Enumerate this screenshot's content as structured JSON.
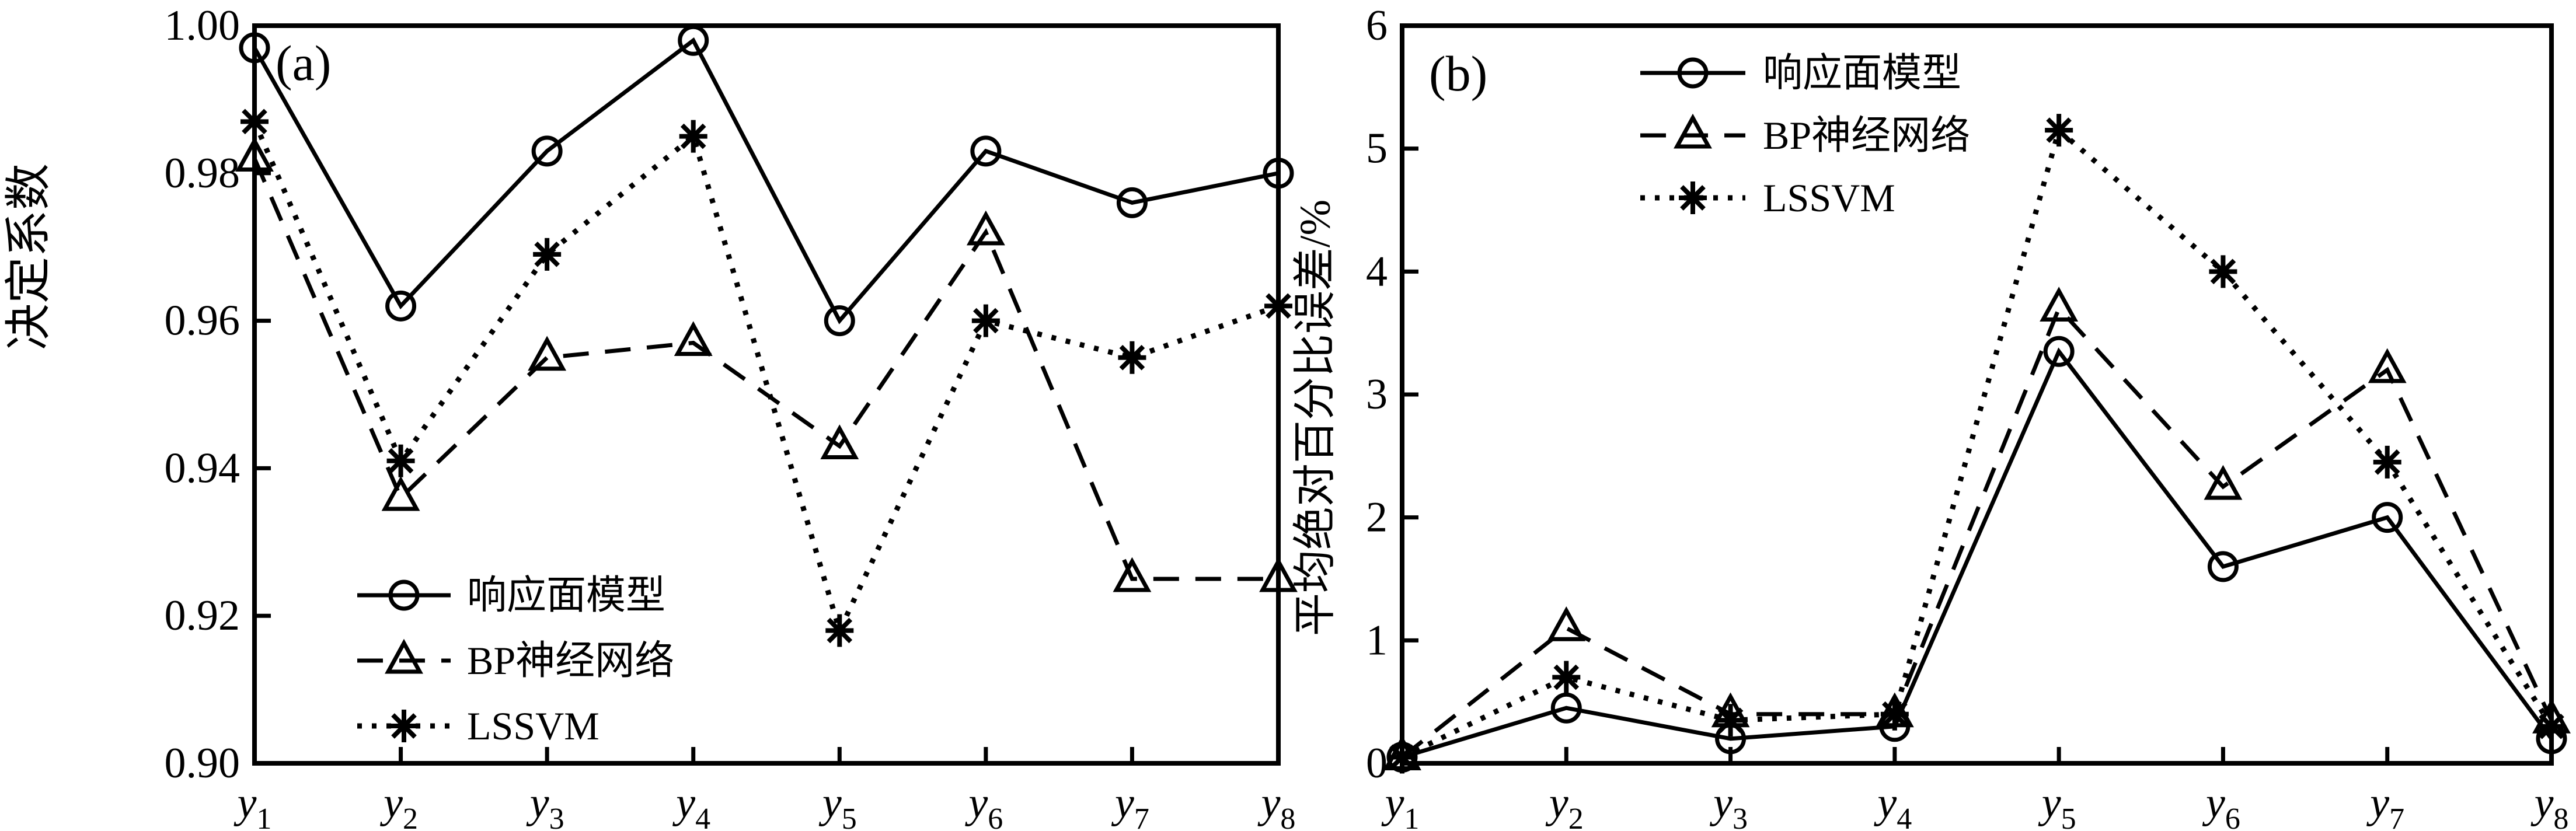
{
  "figure": {
    "background": "#ffffff",
    "ink_color": "#000000"
  },
  "chart_data": [
    {
      "type": "line",
      "panel_label": "(a)",
      "ylabel": "决定系数",
      "xlabel": "",
      "categories": [
        {
          "base": "y",
          "sub": "1"
        },
        {
          "base": "y",
          "sub": "2"
        },
        {
          "base": "y",
          "sub": "3"
        },
        {
          "base": "y",
          "sub": "4"
        },
        {
          "base": "y",
          "sub": "5"
        },
        {
          "base": "y",
          "sub": "6"
        },
        {
          "base": "y",
          "sub": "7"
        },
        {
          "base": "y",
          "sub": "8"
        }
      ],
      "y_ticks": [
        "1.00",
        "0.98",
        "0.96",
        "0.94",
        "0.92",
        "0.90"
      ],
      "ylim": [
        0.9,
        1.0
      ],
      "grid": "off",
      "legend_position": "lower-left",
      "series": [
        {
          "name": "响应面模型",
          "marker": "circle",
          "line": "solid",
          "values": [
            0.997,
            0.962,
            0.983,
            0.998,
            0.96,
            0.983,
            0.976,
            0.98
          ]
        },
        {
          "name": "BP神经网络",
          "marker": "triangle",
          "line": "dashed",
          "values": [
            0.982,
            0.936,
            0.955,
            0.957,
            0.943,
            0.972,
            0.925,
            0.925
          ]
        },
        {
          "name": "LSSVM",
          "marker": "asterisk",
          "line": "dotted",
          "values": [
            0.987,
            0.941,
            0.969,
            0.985,
            0.918,
            0.96,
            0.955,
            0.962
          ]
        }
      ]
    },
    {
      "type": "line",
      "panel_label": "(b)",
      "ylabel": "平均绝对百分比误差/%",
      "xlabel": "",
      "categories": [
        {
          "base": "y",
          "sub": "1"
        },
        {
          "base": "y",
          "sub": "2"
        },
        {
          "base": "y",
          "sub": "3"
        },
        {
          "base": "y",
          "sub": "4"
        },
        {
          "base": "y",
          "sub": "5"
        },
        {
          "base": "y",
          "sub": "6"
        },
        {
          "base": "y",
          "sub": "7"
        },
        {
          "base": "y",
          "sub": "8"
        }
      ],
      "y_ticks": [
        "6",
        "5",
        "4",
        "3",
        "2",
        "1",
        "0"
      ],
      "ylim": [
        0,
        6
      ],
      "grid": "off",
      "legend_position": "upper-center",
      "series": [
        {
          "name": "响应面模型",
          "marker": "circle",
          "line": "solid",
          "values": [
            0.05,
            0.45,
            0.2,
            0.3,
            3.35,
            1.6,
            2.0,
            0.2
          ]
        },
        {
          "name": "BP神经网络",
          "marker": "triangle",
          "line": "dashed",
          "values": [
            0.05,
            1.1,
            0.4,
            0.4,
            3.7,
            2.25,
            3.2,
            0.35
          ]
        },
        {
          "name": "LSSVM",
          "marker": "asterisk",
          "line": "dotted",
          "values": [
            0.05,
            0.7,
            0.35,
            0.4,
            5.15,
            4.0,
            2.45,
            0.3
          ]
        }
      ]
    }
  ]
}
